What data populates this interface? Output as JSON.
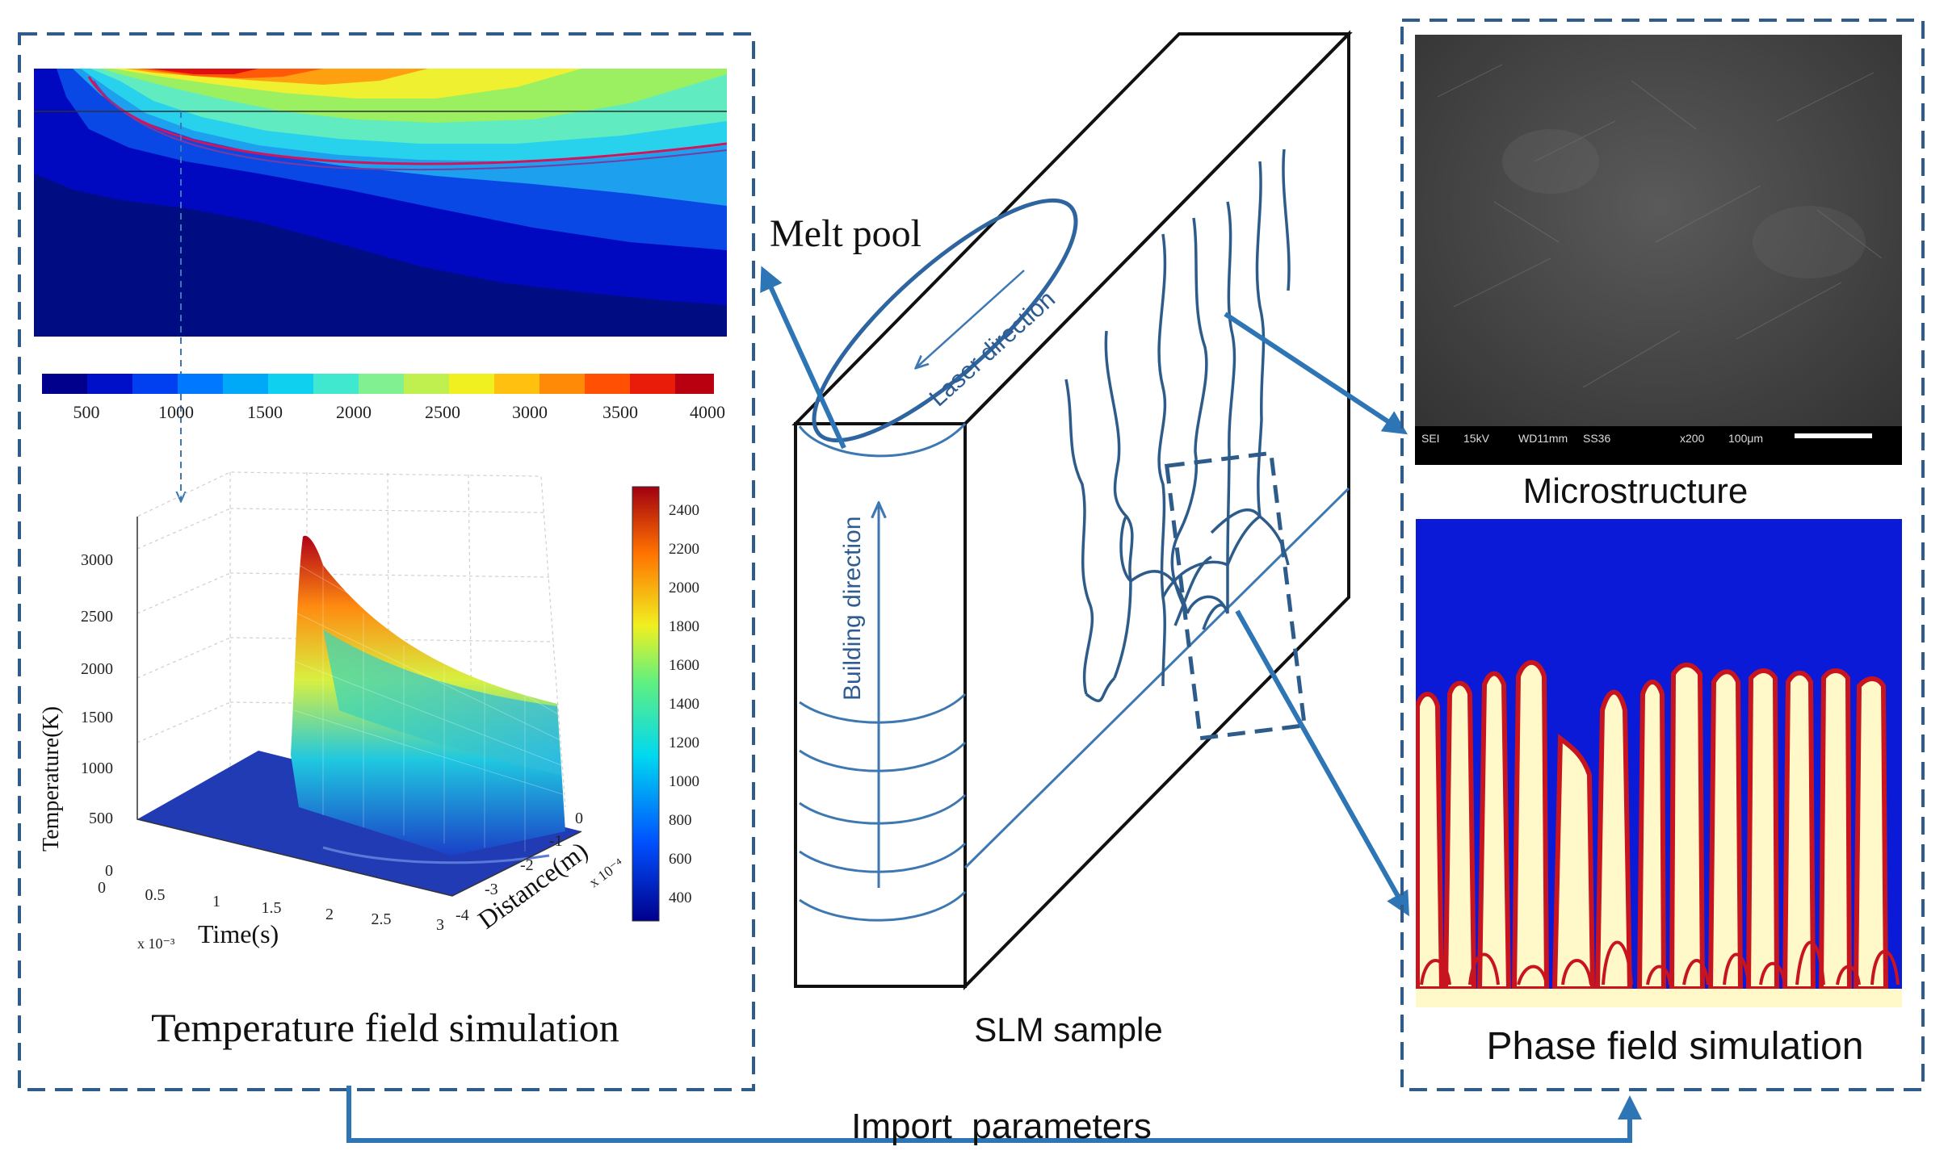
{
  "colors": {
    "accent": "#2e75b6",
    "line": "#3e78b2",
    "box": "#2f5c8a",
    "phase_bg": "#0a1ad6",
    "phase_dendrite": "#fff8c8",
    "phase_edge": "#c8141e",
    "sem_bg": "#3a3a3a"
  },
  "left_panel": {
    "caption": "Temperature field simulation",
    "colorbar_ticks": [
      "500",
      "1000",
      "1500",
      "2000",
      "2500",
      "3000",
      "3500",
      "4000"
    ],
    "plot3d": {
      "zlabel": "Temperature(K)",
      "xlabel": "Time(s)",
      "ylabel": "Distance(m)",
      "z_ticks": [
        "3000",
        "2500",
        "2000",
        "1500",
        "1000",
        "500",
        "0"
      ],
      "x_ticks": [
        "0",
        "0.5",
        "1",
        "1.5",
        "2",
        "2.5",
        "3"
      ],
      "y_ticks": [
        "0",
        "-1",
        "-2",
        "-3",
        "-4"
      ],
      "x_multiplier": "x 10⁻³",
      "y_multiplier": "x 10⁻⁴",
      "colorbar_ticks": [
        "2400",
        "2200",
        "2000",
        "1800",
        "1600",
        "1400",
        "1200",
        "1000",
        "800",
        "600",
        "400"
      ]
    }
  },
  "center": {
    "melt_pool_label": "Melt pool",
    "laser_direction_label": "Laser direction",
    "building_direction_label": "Building direction",
    "sample_caption": "SLM sample"
  },
  "right_panel": {
    "sem_footer": [
      "SEI",
      "15kV",
      "WD11mm",
      "SS36",
      "x200",
      "100μm"
    ],
    "microstructure_caption": "Microstructure",
    "phase_caption": "Phase field simulation"
  },
  "bottom": {
    "import_label": "Import  parameters"
  }
}
